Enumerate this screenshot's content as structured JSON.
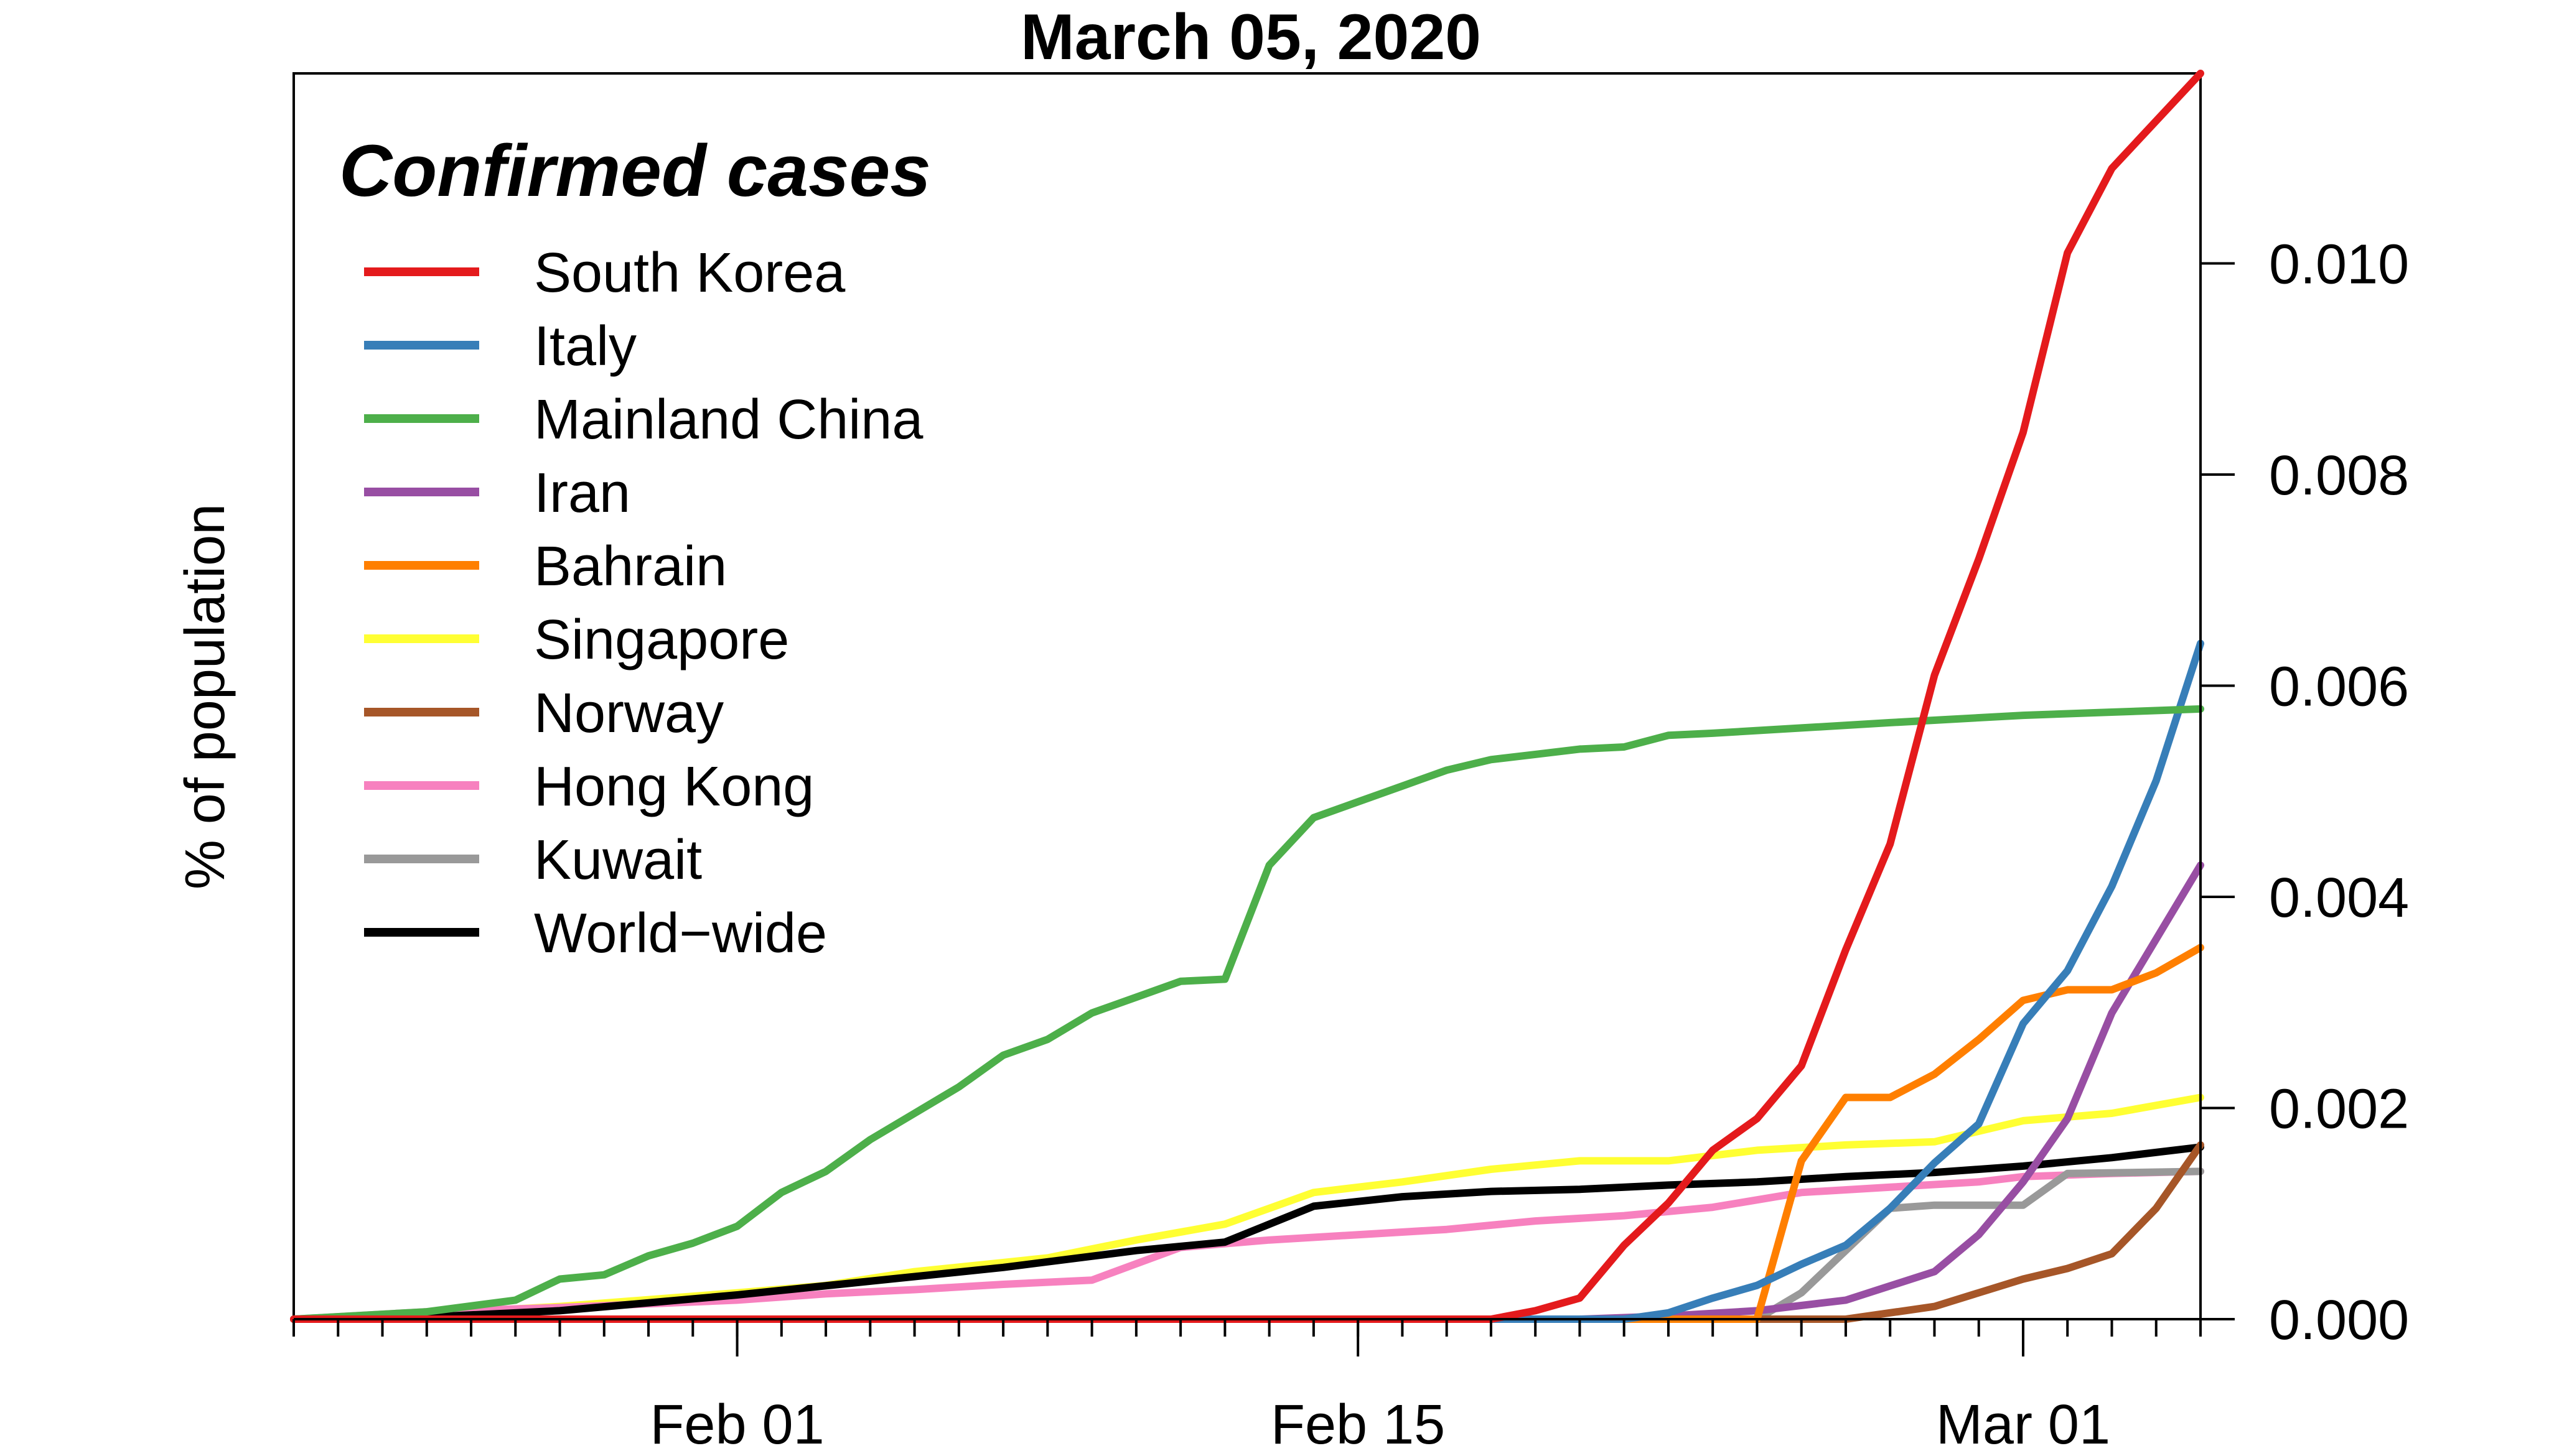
{
  "chart_data": {
    "type": "line",
    "title": "March 05, 2020",
    "ylabel": "% of population",
    "xlabel": "",
    "legend_title": "Confirmed cases",
    "legend_position": "top-left",
    "x_start": "2020-01-22",
    "x_end": "2020-03-05",
    "x_ticks": [
      {
        "date": "2020-02-01",
        "label": "Feb 01"
      },
      {
        "date": "2020-02-15",
        "label": "Feb 15"
      },
      {
        "date": "2020-03-01",
        "label": "Mar 01"
      }
    ],
    "y_ticks": [
      "0.000",
      "0.002",
      "0.004",
      "0.006",
      "0.008",
      "0.010"
    ],
    "ylim": [
      0,
      0.0118
    ],
    "grid": false,
    "series": [
      {
        "name": "Singapore",
        "color": "#FFFF33",
        "points": [
          [
            "2020-01-22",
            0
          ],
          [
            "2020-01-25",
            5e-05
          ],
          [
            "2020-01-28",
            0.00012
          ],
          [
            "2020-02-01",
            0.00025
          ],
          [
            "2020-02-03",
            0.00032
          ],
          [
            "2020-02-05",
            0.00045
          ],
          [
            "2020-02-08",
            0.00058
          ],
          [
            "2020-02-10",
            0.00075
          ],
          [
            "2020-02-12",
            0.0009
          ],
          [
            "2020-02-14",
            0.0012
          ],
          [
            "2020-02-16",
            0.0013
          ],
          [
            "2020-02-18",
            0.00142
          ],
          [
            "2020-02-20",
            0.0015
          ],
          [
            "2020-02-22",
            0.0015
          ],
          [
            "2020-02-24",
            0.0016
          ],
          [
            "2020-02-26",
            0.00165
          ],
          [
            "2020-02-28",
            0.00168
          ],
          [
            "2020-03-01",
            0.00188
          ],
          [
            "2020-03-03",
            0.00195
          ],
          [
            "2020-03-05",
            0.0021
          ]
        ]
      },
      {
        "name": "Hong Kong",
        "color": "#F781BF",
        "points": [
          [
            "2020-01-22",
            0
          ],
          [
            "2020-01-25",
            7e-05
          ],
          [
            "2020-01-28",
            0.00011
          ],
          [
            "2020-02-01",
            0.00018
          ],
          [
            "2020-02-03",
            0.00024
          ],
          [
            "2020-02-05",
            0.00028
          ],
          [
            "2020-02-07",
            0.00033
          ],
          [
            "2020-02-09",
            0.00037
          ],
          [
            "2020-02-11",
            0.00068
          ],
          [
            "2020-02-13",
            0.00075
          ],
          [
            "2020-02-15",
            0.0008
          ],
          [
            "2020-02-17",
            0.00085
          ],
          [
            "2020-02-19",
            0.00093
          ],
          [
            "2020-02-21",
            0.00098
          ],
          [
            "2020-02-23",
            0.00106
          ],
          [
            "2020-02-25",
            0.0012
          ],
          [
            "2020-02-27",
            0.00125
          ],
          [
            "2020-02-29",
            0.0013
          ],
          [
            "2020-03-01",
            0.00135
          ],
          [
            "2020-03-03",
            0.00138
          ],
          [
            "2020-03-05",
            0.0014
          ]
        ]
      },
      {
        "name": "World−wide",
        "color": "#000000",
        "points": [
          [
            "2020-01-22",
            0
          ],
          [
            "2020-01-25",
            2e-05
          ],
          [
            "2020-01-28",
            8e-05
          ],
          [
            "2020-02-01",
            0.00023
          ],
          [
            "2020-02-04",
            0.00036
          ],
          [
            "2020-02-07",
            0.00049
          ],
          [
            "2020-02-10",
            0.00065
          ],
          [
            "2020-02-12",
            0.00073
          ],
          [
            "2020-02-14",
            0.00107
          ],
          [
            "2020-02-16",
            0.00116
          ],
          [
            "2020-02-18",
            0.00121
          ],
          [
            "2020-02-20",
            0.00123
          ],
          [
            "2020-02-22",
            0.00127
          ],
          [
            "2020-02-24",
            0.0013
          ],
          [
            "2020-02-26",
            0.00135
          ],
          [
            "2020-02-28",
            0.00139
          ],
          [
            "2020-03-01",
            0.00145
          ],
          [
            "2020-03-03",
            0.00153
          ],
          [
            "2020-03-05",
            0.00163
          ]
        ]
      },
      {
        "name": "Kuwait",
        "color": "#999999",
        "points": [
          [
            "2020-01-22",
            0
          ],
          [
            "2020-02-24",
            0
          ],
          [
            "2020-02-25",
            0.00025
          ],
          [
            "2020-02-27",
            0.00105
          ],
          [
            "2020-02-28",
            0.00108
          ],
          [
            "2020-03-01",
            0.00108
          ],
          [
            "2020-03-02",
            0.00138
          ],
          [
            "2020-03-05",
            0.0014
          ]
        ]
      },
      {
        "name": "Norway",
        "color": "#A65628",
        "points": [
          [
            "2020-01-22",
            0
          ],
          [
            "2020-02-26",
            0
          ],
          [
            "2020-02-28",
            0.00012
          ],
          [
            "2020-03-01",
            0.00038
          ],
          [
            "2020-03-02",
            0.00048
          ],
          [
            "2020-03-03",
            0.00062
          ],
          [
            "2020-03-04",
            0.00105
          ],
          [
            "2020-03-05",
            0.00165
          ]
        ]
      },
      {
        "name": "Iran",
        "color": "#984EA3",
        "points": [
          [
            "2020-01-22",
            0
          ],
          [
            "2020-02-20",
            0
          ],
          [
            "2020-02-22",
            3e-05
          ],
          [
            "2020-02-24",
            8e-05
          ],
          [
            "2020-02-26",
            0.00018
          ],
          [
            "2020-02-28",
            0.00045
          ],
          [
            "2020-02-29",
            0.0008
          ],
          [
            "2020-03-01",
            0.0013
          ],
          [
            "2020-03-02",
            0.0019
          ],
          [
            "2020-03-03",
            0.0029
          ],
          [
            "2020-03-05",
            0.0043
          ]
        ]
      },
      {
        "name": "Bahrain",
        "color": "#FF7F00",
        "points": [
          [
            "2020-01-22",
            0
          ],
          [
            "2020-02-24",
            0
          ],
          [
            "2020-02-25",
            0.0015
          ],
          [
            "2020-02-26",
            0.0021
          ],
          [
            "2020-02-27",
            0.0021
          ],
          [
            "2020-02-28",
            0.00232
          ],
          [
            "2020-02-29",
            0.00265
          ],
          [
            "2020-03-01",
            0.00302
          ],
          [
            "2020-03-02",
            0.00312
          ],
          [
            "2020-03-03",
            0.00312
          ],
          [
            "2020-03-04",
            0.00328
          ],
          [
            "2020-03-05",
            0.00352
          ]
        ]
      },
      {
        "name": "Italy",
        "color": "#377EB8",
        "points": [
          [
            "2020-01-22",
            0
          ],
          [
            "2020-02-21",
            0
          ],
          [
            "2020-02-22",
            6e-05
          ],
          [
            "2020-02-23",
            0.0002
          ],
          [
            "2020-02-24",
            0.00032
          ],
          [
            "2020-02-25",
            0.00052
          ],
          [
            "2020-02-26",
            0.0007
          ],
          [
            "2020-02-27",
            0.00105
          ],
          [
            "2020-02-28",
            0.00148
          ],
          [
            "2020-02-29",
            0.00185
          ],
          [
            "2020-03-01",
            0.0028
          ],
          [
            "2020-03-02",
            0.0033
          ],
          [
            "2020-03-03",
            0.0041
          ],
          [
            "2020-03-04",
            0.0051
          ],
          [
            "2020-03-05",
            0.0064
          ]
        ]
      },
      {
        "name": "Mainland China",
        "color": "#4DAF4A",
        "points": [
          [
            "2020-01-22",
            0
          ],
          [
            "2020-01-25",
            7e-05
          ],
          [
            "2020-01-27",
            0.00018
          ],
          [
            "2020-01-28",
            0.00038
          ],
          [
            "2020-01-29",
            0.00042
          ],
          [
            "2020-01-30",
            0.0006
          ],
          [
            "2020-01-31",
            0.00072
          ],
          [
            "2020-02-01",
            0.00088
          ],
          [
            "2020-02-02",
            0.0012
          ],
          [
            "2020-02-03",
            0.0014
          ],
          [
            "2020-02-04",
            0.0017
          ],
          [
            "2020-02-05",
            0.00195
          ],
          [
            "2020-02-06",
            0.0022
          ],
          [
            "2020-02-07",
            0.0025
          ],
          [
            "2020-02-08",
            0.00265
          ],
          [
            "2020-02-09",
            0.0029
          ],
          [
            "2020-02-10",
            0.00305
          ],
          [
            "2020-02-11",
            0.0032
          ],
          [
            "2020-02-12",
            0.00322
          ],
          [
            "2020-02-13",
            0.0043
          ],
          [
            "2020-02-14",
            0.00475
          ],
          [
            "2020-02-15",
            0.0049
          ],
          [
            "2020-02-16",
            0.00505
          ],
          [
            "2020-02-17",
            0.0052
          ],
          [
            "2020-02-18",
            0.0053
          ],
          [
            "2020-02-19",
            0.00535
          ],
          [
            "2020-02-20",
            0.0054
          ],
          [
            "2020-02-21",
            0.00542
          ],
          [
            "2020-02-22",
            0.00553
          ],
          [
            "2020-02-23",
            0.00555
          ],
          [
            "2020-02-25",
            0.0056
          ],
          [
            "2020-02-27",
            0.00565
          ],
          [
            "2020-03-01",
            0.00572
          ],
          [
            "2020-03-03",
            0.00575
          ],
          [
            "2020-03-05",
            0.00578
          ]
        ]
      },
      {
        "name": "South Korea",
        "color": "#E41A1C",
        "points": [
          [
            "2020-01-22",
            0
          ],
          [
            "2020-02-18",
            0
          ],
          [
            "2020-02-19",
            8e-05
          ],
          [
            "2020-02-20",
            0.0002
          ],
          [
            "2020-02-21",
            0.0007
          ],
          [
            "2020-02-22",
            0.0011
          ],
          [
            "2020-02-23",
            0.0016
          ],
          [
            "2020-02-24",
            0.0019
          ],
          [
            "2020-02-25",
            0.0024
          ],
          [
            "2020-02-26",
            0.0035
          ],
          [
            "2020-02-27",
            0.0045
          ],
          [
            "2020-02-28",
            0.0061
          ],
          [
            "2020-02-29",
            0.0072
          ],
          [
            "2020-03-01",
            0.0084
          ],
          [
            "2020-03-02",
            0.0101
          ],
          [
            "2020-03-03",
            0.0109
          ],
          [
            "2020-03-05",
            0.0118
          ]
        ]
      }
    ],
    "legend_order": [
      "South Korea",
      "Italy",
      "Mainland China",
      "Iran",
      "Bahrain",
      "Singapore",
      "Norway",
      "Hong Kong",
      "Kuwait",
      "World−wide"
    ]
  }
}
